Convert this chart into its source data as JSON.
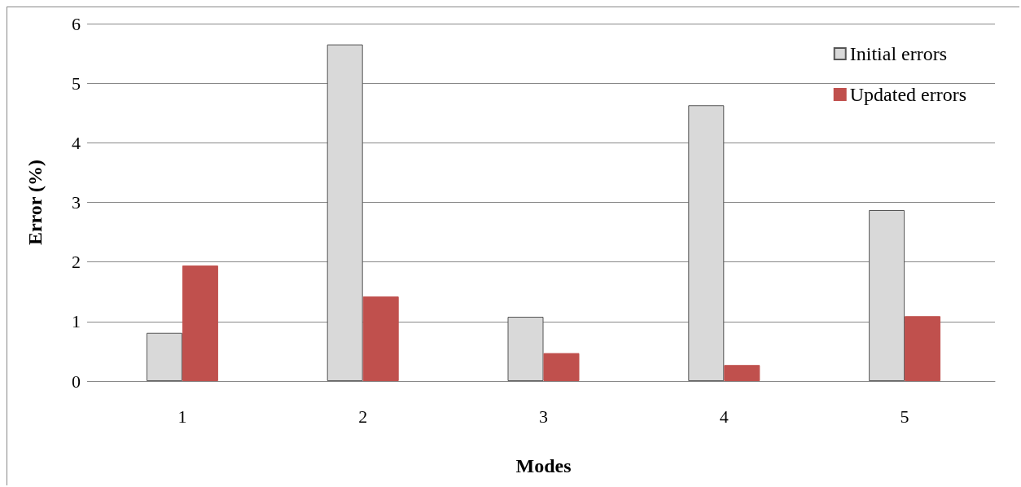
{
  "chart_data": {
    "type": "bar",
    "xlabel": "Modes",
    "ylabel": "Error (%)",
    "categories": [
      "1",
      "2",
      "3",
      "4",
      "5"
    ],
    "series": [
      {
        "name": "Initial errors",
        "color": "#d9d9d9",
        "values": [
          0.81,
          5.65,
          1.08,
          4.63,
          2.87
        ]
      },
      {
        "name": "Updated errors",
        "color": "#c0504d",
        "values": [
          1.94,
          1.42,
          0.47,
          0.27,
          1.09
        ]
      }
    ],
    "ylim": [
      0,
      6
    ],
    "yticks": [
      0,
      1,
      2,
      3,
      4,
      5,
      6
    ],
    "grid": "y",
    "legend": "top right"
  }
}
